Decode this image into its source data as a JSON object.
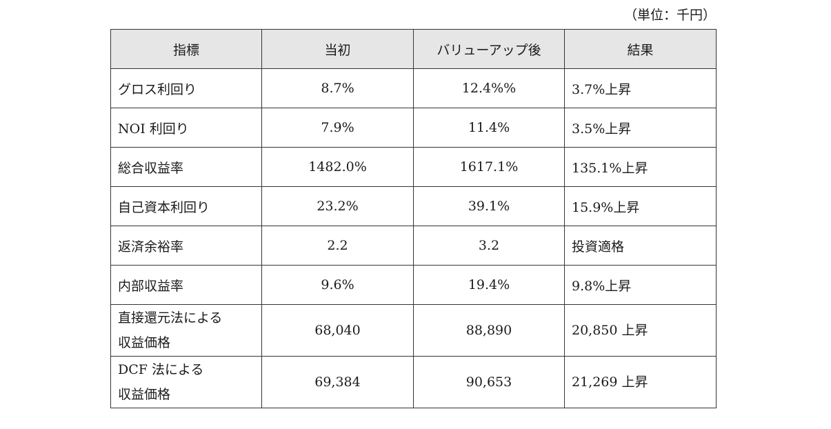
{
  "unit_note": "（単位：千円）",
  "table": {
    "headers": [
      "指標",
      "当初",
      "バリューアップ後",
      "結果"
    ],
    "rows": [
      {
        "label": "グロス利回り",
        "initial": "8.7%",
        "after": "12.4%%",
        "result": "3.7%上昇"
      },
      {
        "label": "NOI 利回り",
        "initial": "7.9%",
        "after": "11.4%",
        "result": "3.5%上昇"
      },
      {
        "label": "総合収益率",
        "initial": "1482.0%",
        "after": "1617.1%",
        "result": "135.1%上昇"
      },
      {
        "label": "自己資本利回り",
        "initial": "23.2%",
        "after": "39.1%",
        "result": "15.9%上昇"
      },
      {
        "label": "返済余裕率",
        "initial": "2.2",
        "after": "3.2",
        "result": "投資適格"
      },
      {
        "label": "内部収益率",
        "initial": "9.6%",
        "after": "19.4%",
        "result": "9.8%上昇"
      },
      {
        "label_line1": "直接還元法による",
        "label_line2": "収益価格",
        "initial": "68,040",
        "after": "88,890",
        "result": "20,850 上昇"
      },
      {
        "label_line1": "DCF 法による",
        "label_line2": "収益価格",
        "initial": "69,384",
        "after": "90,653",
        "result": "21,269 上昇"
      }
    ]
  }
}
